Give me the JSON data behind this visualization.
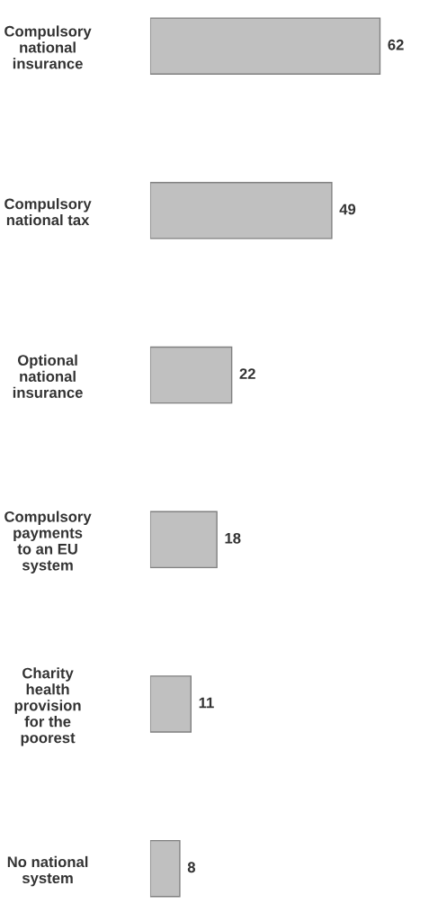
{
  "chart_data": {
    "type": "bar",
    "orientation": "horizontal",
    "categories": [
      "Compulsory\nnational\ninsurance",
      "Compulsory\nnational tax",
      "Optional\nnational\ninsurance",
      "Compulsory\npayments\nto an EU\nsystem",
      "Charity\nhealth\nprovision\nfor the\npoorest",
      "No national\nsystem"
    ],
    "values": [
      62,
      49,
      22,
      18,
      11,
      8
    ],
    "color": "#c0c0c0",
    "data_labels": true,
    "grid": false,
    "legend": false,
    "tick_labels": "y"
  }
}
